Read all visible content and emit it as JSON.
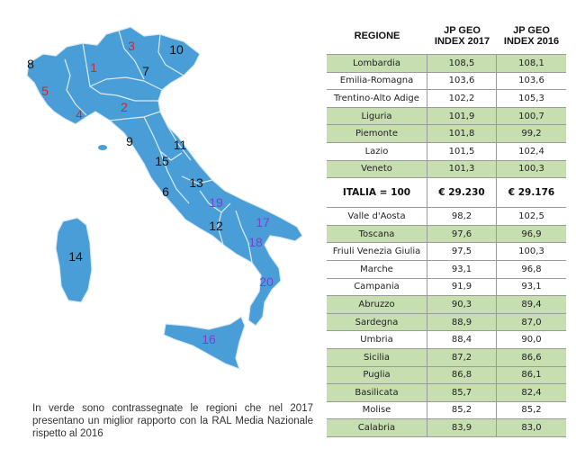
{
  "map": {
    "land_color": "#4a9ed8",
    "border_color": "#dbeaf5",
    "region_numbers": [
      {
        "label": "1",
        "color": "#d8242a"
      },
      {
        "label": "2",
        "color": "#d8242a"
      },
      {
        "label": "3",
        "color": "#d8242a"
      },
      {
        "label": "4",
        "color": "#d8242a"
      },
      {
        "label": "5",
        "color": "#d8242a"
      },
      {
        "label": "6",
        "color": "#111111"
      },
      {
        "label": "7",
        "color": "#111111"
      },
      {
        "label": "8",
        "color": "#111111"
      },
      {
        "label": "9",
        "color": "#111111"
      },
      {
        "label": "10",
        "color": "#111111"
      },
      {
        "label": "11",
        "color": "#111111"
      },
      {
        "label": "12",
        "color": "#111111"
      },
      {
        "label": "13",
        "color": "#111111"
      },
      {
        "label": "14",
        "color": "#111111"
      },
      {
        "label": "15",
        "color": "#111111"
      },
      {
        "label": "16",
        "color": "#7a3fd0"
      },
      {
        "label": "17",
        "color": "#7a3fd0"
      },
      {
        "label": "18",
        "color": "#7a3fd0"
      },
      {
        "label": "19",
        "color": "#7a3fd0"
      },
      {
        "label": "20",
        "color": "#7a3fd0"
      }
    ]
  },
  "note": "In verde sono contrassegnate le regioni che nel 2017 presentano un miglior rapporto con la RAL Media Nazionale rispetto al 2016",
  "table": {
    "headers": [
      "REGIONE",
      "JP GEO INDEX 2017",
      "JP GEO INDEX 2016"
    ],
    "highlight_color": "#c6deb0",
    "rows": [
      {
        "region": "Lombardia",
        "y2017": "108,5",
        "y2016": "108,1",
        "green": true
      },
      {
        "region": "Emilia-Romagna",
        "y2017": "103,6",
        "y2016": "103,6",
        "green": false
      },
      {
        "region": "Trentino-Alto Adige",
        "y2017": "102,2",
        "y2016": "105,3",
        "green": false
      },
      {
        "region": "Liguria",
        "y2017": "101,9",
        "y2016": "100,7",
        "green": true
      },
      {
        "region": "Piemonte",
        "y2017": "101,8",
        "y2016": "99,2",
        "green": true
      },
      {
        "region": "Lazio",
        "y2017": "101,5",
        "y2016": "102,4",
        "green": false
      },
      {
        "region": "Veneto",
        "y2017": "101,3",
        "y2016": "100,3",
        "green": true
      },
      {
        "region": "ITALIA = 100",
        "y2017": "€ 29.230",
        "y2016": "€ 29.176",
        "green": false,
        "italia": true
      },
      {
        "region": "Valle d'Aosta",
        "y2017": "98,2",
        "y2016": "102,5",
        "green": false
      },
      {
        "region": "Toscana",
        "y2017": "97,6",
        "y2016": "96,9",
        "green": true
      },
      {
        "region": "Friuli Venezia Giulia",
        "y2017": "97,5",
        "y2016": "100,3",
        "green": false
      },
      {
        "region": "Marche",
        "y2017": "93,1",
        "y2016": "96,8",
        "green": false
      },
      {
        "region": "Campania",
        "y2017": "91,9",
        "y2016": "93,1",
        "green": false
      },
      {
        "region": "Abruzzo",
        "y2017": "90,3",
        "y2016": "89,4",
        "green": true
      },
      {
        "region": "Sardegna",
        "y2017": "88,9",
        "y2016": "87,0",
        "green": true
      },
      {
        "region": "Umbria",
        "y2017": "88,4",
        "y2016": "90,0",
        "green": false
      },
      {
        "region": "Sicilia",
        "y2017": "87,2",
        "y2016": "86,6",
        "green": true
      },
      {
        "region": "Puglia",
        "y2017": "86,8",
        "y2016": "86,1",
        "green": true
      },
      {
        "region": "Basilicata",
        "y2017": "85,7",
        "y2016": "82,4",
        "green": true
      },
      {
        "region": "Molise",
        "y2017": "85,2",
        "y2016": "85,2",
        "green": false
      },
      {
        "region": "Calabria",
        "y2017": "83,9",
        "y2016": "83,0",
        "green": true
      }
    ]
  }
}
